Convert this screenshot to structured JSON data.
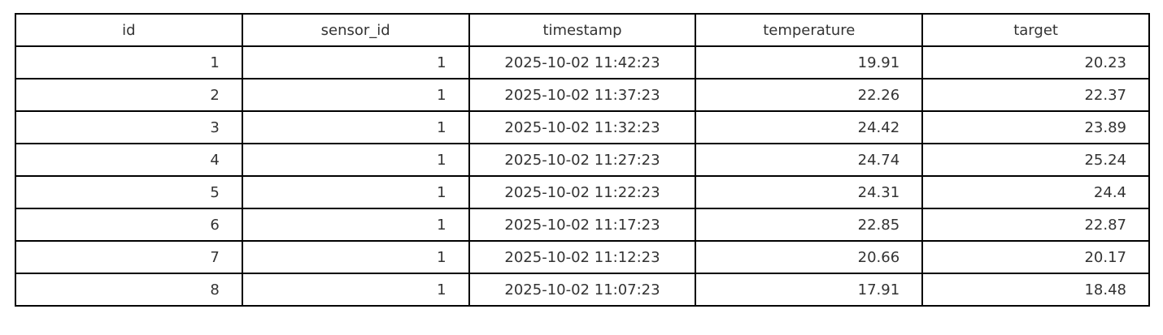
{
  "chart_data": {
    "type": "table",
    "columns": [
      "id",
      "sensor_id",
      "timestamp",
      "temperature",
      "target"
    ],
    "column_align": [
      "right",
      "right",
      "center",
      "right",
      "right"
    ],
    "rows": [
      [
        "1",
        "1",
        "2025-10-02 11:42:23",
        "19.91",
        "20.23"
      ],
      [
        "2",
        "1",
        "2025-10-02 11:37:23",
        "22.26",
        "22.37"
      ],
      [
        "3",
        "1",
        "2025-10-02 11:32:23",
        "24.42",
        "23.89"
      ],
      [
        "4",
        "1",
        "2025-10-02 11:27:23",
        "24.74",
        "25.24"
      ],
      [
        "5",
        "1",
        "2025-10-02 11:22:23",
        "24.31",
        "24.4"
      ],
      [
        "6",
        "1",
        "2025-10-02 11:17:23",
        "22.85",
        "22.87"
      ],
      [
        "7",
        "1",
        "2025-10-02 11:12:23",
        "20.66",
        "20.17"
      ],
      [
        "8",
        "1",
        "2025-10-02 11:07:23",
        "17.91",
        "18.48"
      ]
    ]
  },
  "colors": {
    "border": "#000000",
    "text": "#333333",
    "background": "#ffffff"
  }
}
